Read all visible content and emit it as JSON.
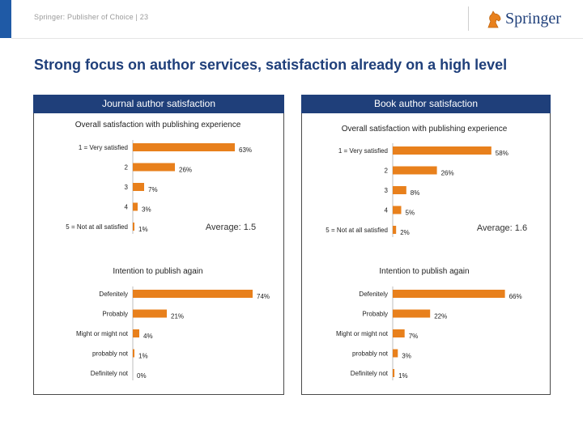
{
  "header": {
    "breadcrumb": "Springer: Publisher of Choice | 23",
    "logo_text": "Springer"
  },
  "page_title": "Strong focus on author services, satisfaction already on a high level",
  "colors": {
    "bar": "#e8801c",
    "header_bg": "#1f3f7a",
    "title": "#1f3f7a",
    "accent": "#1f5aa6"
  },
  "chart_data": [
    {
      "type": "bar",
      "panel": "Journal author satisfaction",
      "title": "Overall satisfaction with publishing experience",
      "categories": [
        "1 = Very satisfied",
        "2",
        "3",
        "4",
        "5 = Not at all satisfied"
      ],
      "values": [
        63,
        26,
        7,
        3,
        1
      ],
      "labels": [
        "63%",
        "26%",
        "7%",
        "3%",
        "1%"
      ],
      "annotation": "Average: 1.5",
      "unit": "%"
    },
    {
      "type": "bar",
      "panel": "Journal author satisfaction",
      "title": "Intention to publish again",
      "categories": [
        "Defenitely",
        "Probably",
        "Might or might not",
        "probably not",
        "Definitely not"
      ],
      "values": [
        74,
        21,
        4,
        1,
        0
      ],
      "labels": [
        "74%",
        "21%",
        "4%",
        "1%",
        "0%"
      ],
      "unit": "%"
    },
    {
      "type": "bar",
      "panel": "Book author satisfaction",
      "title": "Overall satisfaction with publishing experience",
      "categories": [
        "1 = Very satisfied",
        "2",
        "3",
        "4",
        "5 = Not at all satisfied"
      ],
      "values": [
        58,
        26,
        8,
        5,
        2
      ],
      "labels": [
        "58%",
        "26%",
        "8%",
        "5%",
        "2%"
      ],
      "annotation": "Average: 1.6",
      "unit": "%"
    },
    {
      "type": "bar",
      "panel": "Book author satisfaction",
      "title": "Intention to publish again",
      "categories": [
        "Defenitely",
        "Probably",
        "Might or might not",
        "probably not",
        "Definitely not"
      ],
      "values": [
        66,
        22,
        7,
        3,
        1
      ],
      "labels": [
        "66%",
        "22%",
        "7%",
        "3%",
        "1%"
      ],
      "unit": "%"
    }
  ]
}
